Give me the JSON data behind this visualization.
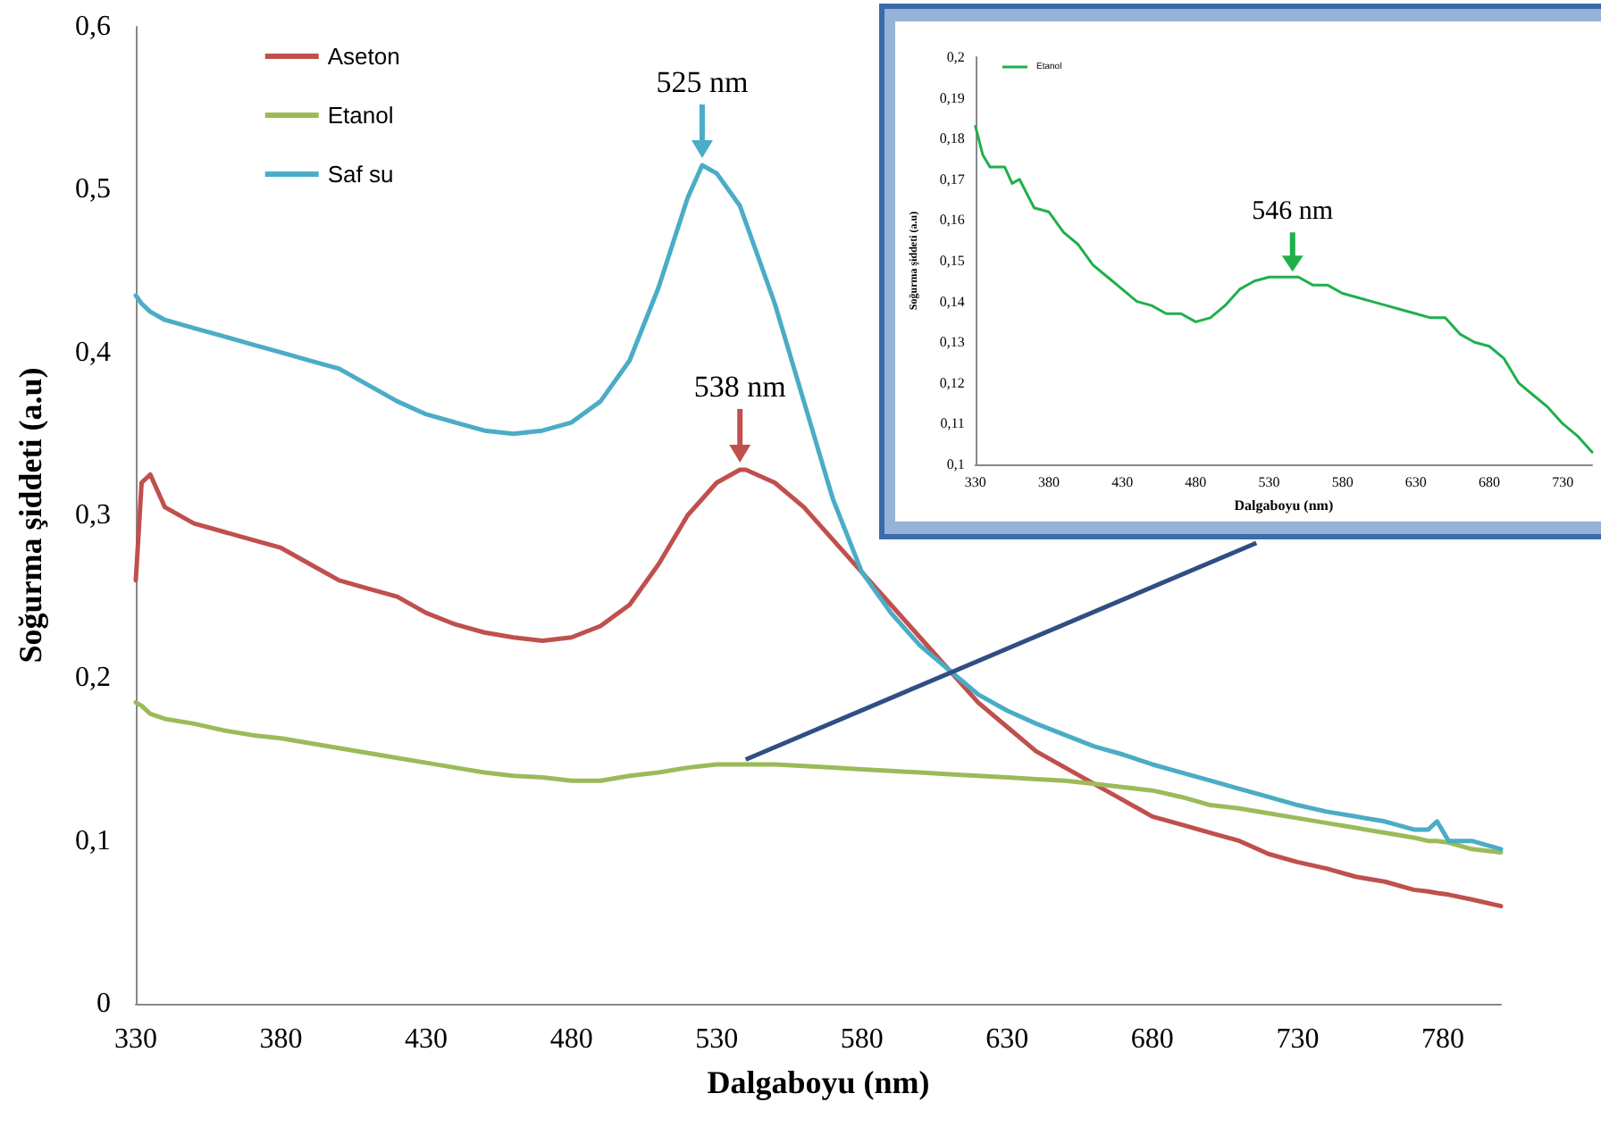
{
  "chart_data": [
    {
      "type": "line",
      "xlabel": "Dalgaboyu (nm)",
      "ylabel": "Soğurma şiddeti (a.u)",
      "legend": "top left",
      "grid": false,
      "marker": "none",
      "x": [
        330,
        332,
        335,
        340,
        350,
        360,
        370,
        380,
        390,
        400,
        410,
        420,
        430,
        440,
        450,
        460,
        470,
        480,
        490,
        500,
        510,
        520,
        525,
        530,
        538,
        540,
        550,
        560,
        570,
        580,
        590,
        600,
        610,
        620,
        630,
        640,
        650,
        660,
        670,
        680,
        690,
        700,
        710,
        720,
        730,
        740,
        750,
        760,
        770,
        775,
        778,
        782,
        790,
        800
      ],
      "xlim": [
        330,
        800
      ],
      "xticks": [
        330,
        380,
        430,
        480,
        530,
        580,
        630,
        680,
        730,
        780
      ],
      "ylim": [
        0,
        0.6
      ],
      "yticks": [
        0,
        {
          "value": 0.1,
          "label": "0,1"
        },
        {
          "value": 0.2,
          "label": "0,2"
        },
        {
          "value": 0.3,
          "label": "0,3"
        },
        {
          "value": 0.4,
          "label": "0,4"
        },
        {
          "value": 0.5,
          "label": "0,5"
        },
        {
          "value": 0.6,
          "label": "0,6"
        }
      ],
      "series": [
        {
          "name": "Aseton",
          "color": "#c0504d",
          "values": [
            0.26,
            0.32,
            0.325,
            0.305,
            0.295,
            0.29,
            0.285,
            0.28,
            0.27,
            0.26,
            0.255,
            0.25,
            0.24,
            0.233,
            0.228,
            0.225,
            0.223,
            0.225,
            0.232,
            0.245,
            0.27,
            0.3,
            0.31,
            0.32,
            0.328,
            0.328,
            0.32,
            0.305,
            0.285,
            0.265,
            0.245,
            0.225,
            0.205,
            0.185,
            0.17,
            0.155,
            0.145,
            0.135,
            0.125,
            0.115,
            0.11,
            0.105,
            0.1,
            0.092,
            0.087,
            0.083,
            0.078,
            0.075,
            0.07,
            0.069,
            0.068,
            0.067,
            0.064,
            0.06
          ]
        },
        {
          "name": "Etanol",
          "color": "#9bbb59",
          "values": [
            0.185,
            0.183,
            0.178,
            0.175,
            0.172,
            0.168,
            0.165,
            0.163,
            0.16,
            0.157,
            0.154,
            0.151,
            0.148,
            0.145,
            0.142,
            0.14,
            0.139,
            0.137,
            0.137,
            0.14,
            0.142,
            0.145,
            0.146,
            0.147,
            0.147,
            0.147,
            0.147,
            0.146,
            0.145,
            0.144,
            0.143,
            0.142,
            0.141,
            0.14,
            0.139,
            0.138,
            0.137,
            0.135,
            0.133,
            0.131,
            0.127,
            0.122,
            0.12,
            0.117,
            0.114,
            0.111,
            0.108,
            0.105,
            0.102,
            0.1,
            0.1,
            0.099,
            0.095,
            0.093
          ]
        },
        {
          "name": "Saf su",
          "color": "#4bacc6",
          "values": [
            0.435,
            0.43,
            0.425,
            0.42,
            0.415,
            0.41,
            0.405,
            0.4,
            0.395,
            0.39,
            0.38,
            0.37,
            0.362,
            0.357,
            0.352,
            0.35,
            0.352,
            0.357,
            0.37,
            0.395,
            0.44,
            0.495,
            0.515,
            0.51,
            0.49,
            0.48,
            0.43,
            0.37,
            0.31,
            0.265,
            0.24,
            0.22,
            0.205,
            0.19,
            0.18,
            0.172,
            0.165,
            0.158,
            0.153,
            0.147,
            0.142,
            0.137,
            0.132,
            0.127,
            0.122,
            0.118,
            0.115,
            0.112,
            0.107,
            0.107,
            0.112,
            0.1,
            0.1,
            0.095
          ]
        }
      ],
      "annotations": [
        {
          "text": "525 nm",
          "x": 525,
          "y": 0.515
        },
        {
          "text": "538 nm",
          "x": 538,
          "y": 0.328
        }
      ]
    },
    {
      "type": "line",
      "xlabel": "Dalgaboyu (nm)",
      "ylabel": "Soğurma şiddeti (a.u)",
      "legend": "top left",
      "grid": false,
      "marker": "none",
      "x": [
        330,
        335,
        340,
        350,
        355,
        360,
        370,
        380,
        390,
        400,
        410,
        420,
        430,
        440,
        450,
        460,
        470,
        480,
        490,
        500,
        510,
        520,
        530,
        540,
        550,
        560,
        570,
        580,
        590,
        600,
        610,
        620,
        630,
        640,
        650,
        660,
        670,
        680,
        690,
        700,
        710,
        720,
        730,
        740,
        750
      ],
      "xlim": [
        330,
        750
      ],
      "xticks": [
        330,
        380,
        430,
        480,
        530,
        580,
        630,
        680,
        730
      ],
      "ylim": [
        0.1,
        0.2
      ],
      "yticks": [
        {
          "value": 0.1,
          "label": "0,1"
        },
        {
          "value": 0.11,
          "label": "0,11"
        },
        {
          "value": 0.12,
          "label": "0,12"
        },
        {
          "value": 0.13,
          "label": "0,13"
        },
        {
          "value": 0.14,
          "label": "0,14"
        },
        {
          "value": 0.15,
          "label": "0,15"
        },
        {
          "value": 0.16,
          "label": "0,16"
        },
        {
          "value": 0.17,
          "label": "0,17"
        },
        {
          "value": 0.18,
          "label": "0,18"
        },
        {
          "value": 0.19,
          "label": "0,19"
        },
        {
          "value": 0.2,
          "label": "0,2"
        }
      ],
      "series": [
        {
          "name": "Etanol",
          "color": "#1fb04b",
          "values": [
            0.183,
            0.176,
            0.173,
            0.173,
            0.169,
            0.17,
            0.163,
            0.162,
            0.157,
            0.154,
            0.149,
            0.146,
            0.143,
            0.14,
            0.139,
            0.137,
            0.137,
            0.135,
            0.136,
            0.139,
            0.143,
            0.145,
            0.146,
            0.146,
            0.146,
            0.144,
            0.144,
            0.142,
            0.141,
            0.14,
            0.139,
            0.138,
            0.137,
            0.136,
            0.136,
            0.132,
            0.13,
            0.129,
            0.126,
            0.12,
            0.117,
            0.114,
            0.11,
            0.107,
            0.103
          ]
        }
      ],
      "annotations": [
        {
          "text": "546 nm",
          "x": 546,
          "y": 0.146
        }
      ]
    }
  ]
}
